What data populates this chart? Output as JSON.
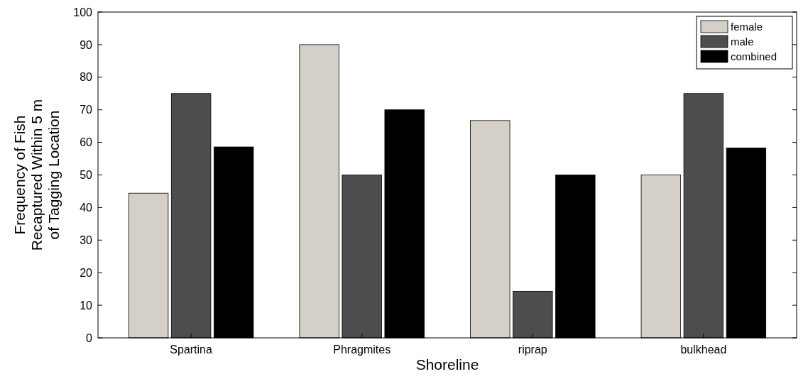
{
  "chart_data": {
    "type": "bar",
    "xlabel": "Shoreline",
    "ylabel": "Frequency of Fish\nRecaptured Within 5 m\nof Tagging Location",
    "categories": [
      "Spartina",
      "Phragmites",
      "riprap",
      "bulkhead"
    ],
    "series": [
      {
        "name": "female",
        "color": "#d4d0c8",
        "values": [
          44.4,
          90,
          66.7,
          50
        ]
      },
      {
        "name": "male",
        "color": "#4d4d4d",
        "values": [
          75,
          50,
          14.3,
          75
        ]
      },
      {
        "name": "combined",
        "color": "#000000",
        "values": [
          58.6,
          70,
          50,
          58.3
        ]
      }
    ],
    "ylim": [
      0,
      100
    ],
    "yticks": [
      0,
      10,
      20,
      30,
      40,
      50,
      60,
      70,
      80,
      90,
      100
    ],
    "grid": false,
    "legend": "top right"
  }
}
